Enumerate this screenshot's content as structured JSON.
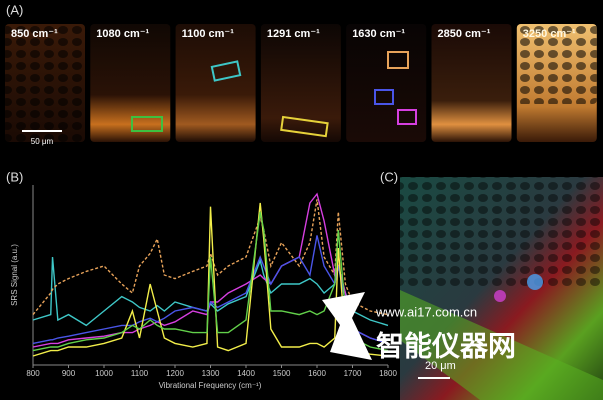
{
  "panel_a": {
    "label": "(A)",
    "tiles": [
      {
        "label": "850 cm⁻¹"
      },
      {
        "label": "1080 cm⁻¹"
      },
      {
        "label": "1100 cm⁻¹"
      },
      {
        "label": "1291 cm⁻¹"
      },
      {
        "label": "1630 cm⁻¹"
      },
      {
        "label": "2850 cm⁻¹"
      },
      {
        "label": "3250 cm⁻¹"
      }
    ],
    "scale_bar": "50 μm"
  },
  "chart_data": {
    "type": "line",
    "label": "(B)",
    "x_label": "Vibrational Frequency (cm⁻¹)",
    "y_label": "SRS Signal (a.u.)",
    "x": [
      800,
      850,
      855,
      870,
      900,
      950,
      1000,
      1050,
      1080,
      1100,
      1130,
      1150,
      1170,
      1200,
      1250,
      1290,
      1300,
      1320,
      1350,
      1400,
      1440,
      1450,
      1470,
      1500,
      1550,
      1580,
      1600,
      1620,
      1650,
      1660,
      1680,
      1700,
      1750,
      1800
    ],
    "xlim": [
      800,
      1800
    ],
    "xticks": [
      800,
      900,
      1000,
      1100,
      1200,
      1300,
      1400,
      1500,
      1600,
      1700,
      1800
    ],
    "ylim": [
      0,
      100
    ],
    "series": [
      {
        "color": "#3ec7c7",
        "values": [
          25,
          28,
          60,
          25,
          28,
          22,
          30,
          38,
          35,
          32,
          30,
          33,
          30,
          35,
          32,
          30,
          34,
          30,
          34,
          38,
          58,
          50,
          40,
          45,
          45,
          48,
          45,
          40,
          45,
          55,
          40,
          30,
          25,
          22
        ]
      },
      {
        "color": "#e8a35a",
        "dashed": true,
        "values": [
          28,
          40,
          42,
          45,
          48,
          52,
          55,
          45,
          40,
          55,
          62,
          70,
          50,
          48,
          52,
          55,
          62,
          50,
          55,
          60,
          82,
          75,
          55,
          68,
          55,
          68,
          92,
          60,
          50,
          85,
          45,
          35,
          30,
          28
        ]
      },
      {
        "color": "#d63fe0",
        "values": [
          10,
          12,
          12,
          12,
          14,
          15,
          16,
          18,
          18,
          20,
          22,
          24,
          22,
          24,
          30,
          28,
          35,
          35,
          40,
          45,
          50,
          48,
          45,
          55,
          60,
          90,
          95,
          80,
          50,
          55,
          40,
          20,
          15,
          12
        ]
      },
      {
        "color": "#4a55e8",
        "values": [
          12,
          14,
          14,
          15,
          16,
          18,
          20,
          22,
          22,
          24,
          26,
          24,
          26,
          30,
          32,
          30,
          35,
          32,
          35,
          40,
          60,
          55,
          45,
          55,
          60,
          50,
          72,
          55,
          45,
          55,
          35,
          20,
          15,
          12
        ]
      },
      {
        "color": "#f2ee4a",
        "values": [
          5,
          8,
          8,
          8,
          10,
          10,
          12,
          15,
          30,
          15,
          45,
          30,
          15,
          12,
          10,
          12,
          88,
          10,
          8,
          12,
          90,
          70,
          20,
          10,
          10,
          12,
          12,
          10,
          15,
          65,
          15,
          8,
          6,
          5
        ]
      },
      {
        "color": "#62d04a",
        "values": [
          8,
          10,
          10,
          10,
          12,
          14,
          15,
          18,
          22,
          20,
          25,
          22,
          20,
          20,
          18,
          18,
          60,
          18,
          18,
          25,
          85,
          75,
          30,
          30,
          28,
          30,
          28,
          30,
          45,
          75,
          30,
          15,
          10,
          8
        ]
      }
    ]
  },
  "panel_c": {
    "label": "(C)",
    "scale_bar": "20 μm"
  },
  "watermark": {
    "url": "www.ai17.com.cn",
    "name": "智能仪器网"
  }
}
